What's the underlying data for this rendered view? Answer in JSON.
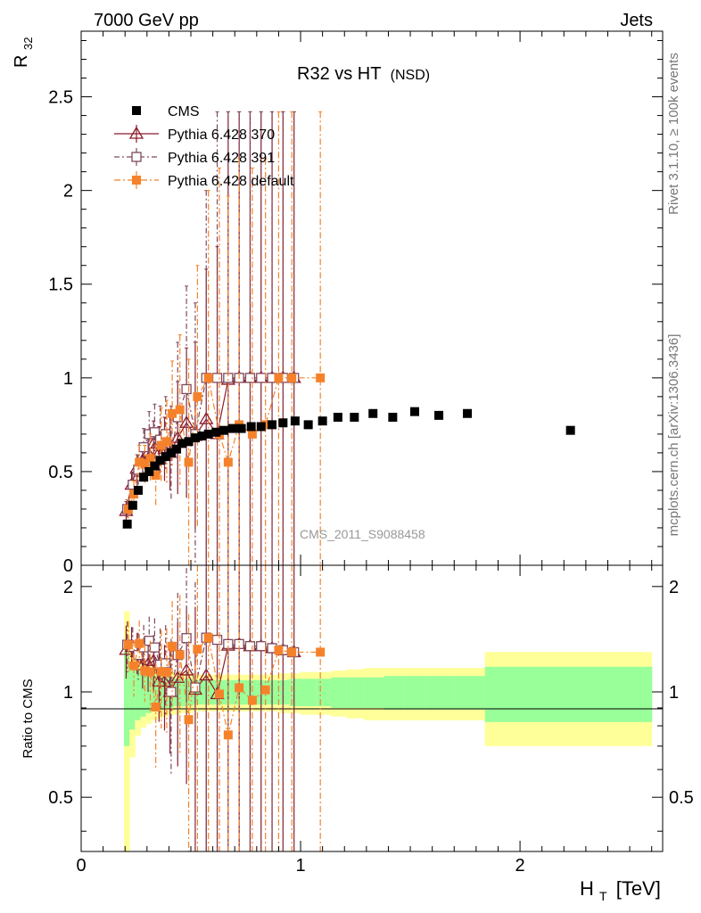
{
  "header": {
    "left": "7000 GeV pp",
    "right": "Jets"
  },
  "side": {
    "rivet": "Rivet 3.1.10, ≥ 100k events",
    "mcplots": "mcplots.cern.ch [arXiv:1306.3436]"
  },
  "chart_data": {
    "type": "scatter",
    "title_main": "R32 vs HT",
    "title_sub": "(NSD)",
    "analysis": "CMS_2011_S9088458",
    "xlabel": "H",
    "xlabel_sub": "T",
    "xlabel_unit": "[TeV]",
    "ylabel": "R",
    "ylabel_sub": "32",
    "ratio_ylabel": "Ratio to CMS",
    "xlim": [
      0,
      2.65
    ],
    "ylim": [
      0,
      2.85
    ],
    "ratio_ylim": [
      0.35,
      2.3
    ],
    "xticks": [
      "0",
      "1",
      "2"
    ],
    "yticks": [
      "0",
      "0.5",
      "1",
      "1.5",
      "2",
      "2.5"
    ],
    "ratio_yticks": [
      "0.5",
      "1",
      "2"
    ],
    "legend_position": "top-left",
    "series": [
      {
        "name": "CMS",
        "color": "#000000",
        "marker": "filled-square",
        "x": [
          0.21,
          0.235,
          0.26,
          0.285,
          0.31,
          0.335,
          0.36,
          0.385,
          0.41,
          0.435,
          0.46,
          0.49,
          0.52,
          0.55,
          0.58,
          0.615,
          0.65,
          0.69,
          0.73,
          0.775,
          0.82,
          0.87,
          0.92,
          0.975,
          1.035,
          1.1,
          1.17,
          1.245,
          1.33,
          1.42,
          1.52,
          1.63,
          1.76,
          2.23
        ],
        "y": [
          0.22,
          0.32,
          0.4,
          0.47,
          0.5,
          0.53,
          0.56,
          0.58,
          0.6,
          0.62,
          0.65,
          0.66,
          0.68,
          0.69,
          0.7,
          0.71,
          0.72,
          0.73,
          0.73,
          0.74,
          0.74,
          0.75,
          0.76,
          0.77,
          0.75,
          0.77,
          0.79,
          0.79,
          0.81,
          0.79,
          0.82,
          0.8,
          0.81,
          0.72
        ]
      },
      {
        "name": "Pythia 6.428 370",
        "color": "#8b1a2b",
        "marker": "open-triangle",
        "x": [
          0.205,
          0.23,
          0.255,
          0.28,
          0.305,
          0.33,
          0.355,
          0.38,
          0.405,
          0.44,
          0.48,
          0.52,
          0.57,
          0.62,
          0.67,
          0.72,
          0.77,
          0.82,
          0.87,
          0.92,
          0.97
        ],
        "y": [
          0.29,
          0.43,
          0.52,
          0.56,
          0.6,
          0.65,
          0.6,
          0.62,
          0.6,
          0.68,
          0.76,
          0.69,
          0.78,
          0.7,
          0.99,
          1.0,
          1.0,
          1.0,
          1.0,
          1.0,
          1.0
        ],
        "yerr": [
          0.05,
          0.06,
          0.07,
          0.08,
          0.1,
          0.12,
          0.14,
          0.17,
          0.2,
          0.3,
          0.4,
          0.5,
          0.8,
          1.0,
          1.43,
          1.42,
          1.42,
          1.42,
          1.42,
          1.42,
          1.42
        ]
      },
      {
        "name": "Pythia 6.428 391",
        "color": "#7f4a5c",
        "marker": "open-square",
        "x": [
          0.21,
          0.235,
          0.26,
          0.285,
          0.31,
          0.335,
          0.36,
          0.385,
          0.41,
          0.44,
          0.48,
          0.52,
          0.57,
          0.62,
          0.67,
          0.72,
          0.77,
          0.82,
          0.87,
          0.92,
          0.97
        ],
        "y": [
          0.3,
          0.43,
          0.51,
          0.63,
          0.7,
          0.71,
          0.67,
          0.7,
          0.6,
          0.79,
          0.94,
          0.7,
          1.0,
          1.0,
          1.0,
          1.0,
          1.0,
          1.0,
          1.0,
          1.0,
          1.0
        ],
        "yerr": [
          0.05,
          0.06,
          0.08,
          0.1,
          0.12,
          0.15,
          0.18,
          0.2,
          0.25,
          0.4,
          0.55,
          0.7,
          1.0,
          1.42,
          1.42,
          1.42,
          1.42,
          1.42,
          1.42,
          1.42,
          1.42
        ]
      },
      {
        "name": "Pythia 6.428 default",
        "color": "#f5822b",
        "marker": "filled-square",
        "x": [
          0.215,
          0.24,
          0.265,
          0.29,
          0.315,
          0.34,
          0.365,
          0.39,
          0.415,
          0.45,
          0.49,
          0.53,
          0.58,
          0.63,
          0.67,
          0.72,
          0.78,
          0.84,
          0.9,
          0.96,
          1.09
        ],
        "y": [
          0.3,
          0.38,
          0.55,
          0.54,
          0.57,
          0.48,
          0.64,
          0.66,
          0.81,
          0.83,
          0.55,
          0.9,
          1.0,
          0.7,
          0.55,
          0.75,
          0.7,
          0.75,
          1.0,
          1.0,
          1.0
        ],
        "yerr": [
          0.05,
          0.07,
          0.09,
          0.1,
          0.13,
          0.16,
          0.2,
          0.22,
          0.28,
          0.4,
          0.55,
          0.7,
          1.0,
          1.42,
          1.42,
          1.42,
          1.42,
          1.42,
          1.42,
          1.42,
          1.42
        ]
      }
    ],
    "ratio_band": {
      "x_edges": [
        0.195,
        0.22,
        0.245,
        0.27,
        0.295,
        0.32,
        0.345,
        0.37,
        0.395,
        0.42,
        0.45,
        0.48,
        0.51,
        0.54,
        0.57,
        0.6,
        0.64,
        0.68,
        0.72,
        0.76,
        0.8,
        0.85,
        0.9,
        0.95,
        1.0,
        1.07,
        1.14,
        1.21,
        1.29,
        1.38,
        1.47,
        1.57,
        1.7,
        1.84,
        2.6
      ],
      "inner_half": [
        0.3,
        0.22,
        0.17,
        0.15,
        0.13,
        0.12,
        0.11,
        0.1,
        0.1,
        0.09,
        0.09,
        0.09,
        0.08,
        0.08,
        0.08,
        0.08,
        0.08,
        0.08,
        0.08,
        0.08,
        0.08,
        0.08,
        0.08,
        0.09,
        0.09,
        0.09,
        0.1,
        0.1,
        0.1,
        0.11,
        0.11,
        0.11,
        0.11,
        0.18
      ],
      "outer_half": [
        0.7,
        0.35,
        0.25,
        0.21,
        0.19,
        0.17,
        0.16,
        0.15,
        0.14,
        0.14,
        0.13,
        0.13,
        0.12,
        0.12,
        0.12,
        0.12,
        0.12,
        0.12,
        0.12,
        0.12,
        0.12,
        0.12,
        0.13,
        0.13,
        0.14,
        0.14,
        0.15,
        0.16,
        0.17,
        0.17,
        0.17,
        0.17,
        0.17,
        0.3
      ],
      "inner_color": "#99ff99",
      "outer_color": "#ffff99"
    }
  }
}
